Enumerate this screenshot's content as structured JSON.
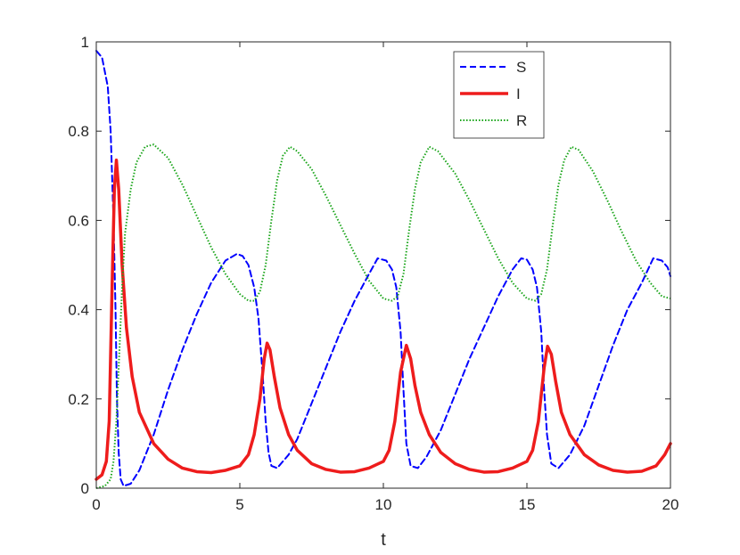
{
  "chart_data": {
    "type": "line",
    "xlabel": "t",
    "ylabel": "",
    "xlim": [
      0,
      20
    ],
    "ylim": [
      0,
      1
    ],
    "xticks": [
      0,
      5,
      10,
      15,
      20
    ],
    "yticks": [
      0,
      0.2,
      0.4,
      0.6,
      0.8,
      1
    ],
    "xtick_labels": [
      "0",
      "5",
      "10",
      "15",
      "20"
    ],
    "ytick_labels": [
      "0",
      "0.2",
      "0.4",
      "0.6",
      "0.8",
      "1"
    ],
    "grid": false,
    "legend_position": "top-right",
    "series": [
      {
        "name": "S",
        "color": "#0000ff",
        "style": "dashed",
        "points": [
          [
            0,
            0.98
          ],
          [
            0.2,
            0.965
          ],
          [
            0.4,
            0.9
          ],
          [
            0.5,
            0.8
          ],
          [
            0.6,
            0.6
          ],
          [
            0.67,
            0.4
          ],
          [
            0.72,
            0.2
          ],
          [
            0.78,
            0.08
          ],
          [
            0.85,
            0.02
          ],
          [
            0.95,
            0.005
          ],
          [
            1.2,
            0.01
          ],
          [
            1.5,
            0.04
          ],
          [
            2,
            0.12
          ],
          [
            2.5,
            0.22
          ],
          [
            3,
            0.31
          ],
          [
            3.5,
            0.39
          ],
          [
            4,
            0.46
          ],
          [
            4.5,
            0.51
          ],
          [
            4.9,
            0.525
          ],
          [
            5.1,
            0.52
          ],
          [
            5.3,
            0.5
          ],
          [
            5.5,
            0.45
          ],
          [
            5.65,
            0.38
          ],
          [
            5.8,
            0.25
          ],
          [
            5.9,
            0.15
          ],
          [
            6.0,
            0.08
          ],
          [
            6.1,
            0.05
          ],
          [
            6.3,
            0.045
          ],
          [
            6.7,
            0.075
          ],
          [
            7,
            0.11
          ],
          [
            7.5,
            0.19
          ],
          [
            8,
            0.27
          ],
          [
            8.5,
            0.35
          ],
          [
            9,
            0.42
          ],
          [
            9.5,
            0.48
          ],
          [
            9.8,
            0.515
          ],
          [
            10.1,
            0.51
          ],
          [
            10.3,
            0.49
          ],
          [
            10.45,
            0.45
          ],
          [
            10.6,
            0.35
          ],
          [
            10.7,
            0.22
          ],
          [
            10.8,
            0.1
          ],
          [
            10.95,
            0.05
          ],
          [
            11.2,
            0.045
          ],
          [
            11.5,
            0.07
          ],
          [
            12,
            0.13
          ],
          [
            12.5,
            0.21
          ],
          [
            13,
            0.29
          ],
          [
            13.5,
            0.36
          ],
          [
            14,
            0.43
          ],
          [
            14.5,
            0.49
          ],
          [
            14.8,
            0.515
          ],
          [
            15.0,
            0.512
          ],
          [
            15.2,
            0.49
          ],
          [
            15.35,
            0.45
          ],
          [
            15.5,
            0.35
          ],
          [
            15.6,
            0.22
          ],
          [
            15.7,
            0.12
          ],
          [
            15.85,
            0.055
          ],
          [
            16.1,
            0.045
          ],
          [
            16.5,
            0.075
          ],
          [
            17,
            0.14
          ],
          [
            17.5,
            0.23
          ],
          [
            18,
            0.32
          ],
          [
            18.5,
            0.4
          ],
          [
            19,
            0.46
          ],
          [
            19.4,
            0.515
          ],
          [
            19.7,
            0.51
          ],
          [
            19.9,
            0.495
          ],
          [
            20,
            0.475
          ]
        ]
      },
      {
        "name": "I",
        "color": "#ee1c1c",
        "style": "solid",
        "points": [
          [
            0,
            0.02
          ],
          [
            0.2,
            0.03
          ],
          [
            0.35,
            0.06
          ],
          [
            0.45,
            0.15
          ],
          [
            0.55,
            0.45
          ],
          [
            0.63,
            0.67
          ],
          [
            0.7,
            0.735
          ],
          [
            0.78,
            0.67
          ],
          [
            0.9,
            0.5
          ],
          [
            1.05,
            0.36
          ],
          [
            1.25,
            0.25
          ],
          [
            1.5,
            0.17
          ],
          [
            2,
            0.1
          ],
          [
            2.5,
            0.065
          ],
          [
            3,
            0.045
          ],
          [
            3.5,
            0.037
          ],
          [
            4,
            0.035
          ],
          [
            4.5,
            0.04
          ],
          [
            5,
            0.05
          ],
          [
            5.3,
            0.075
          ],
          [
            5.5,
            0.12
          ],
          [
            5.7,
            0.2
          ],
          [
            5.85,
            0.29
          ],
          [
            5.95,
            0.325
          ],
          [
            6.05,
            0.31
          ],
          [
            6.2,
            0.25
          ],
          [
            6.4,
            0.18
          ],
          [
            6.7,
            0.12
          ],
          [
            7,
            0.085
          ],
          [
            7.5,
            0.055
          ],
          [
            8,
            0.042
          ],
          [
            8.5,
            0.036
          ],
          [
            9,
            0.037
          ],
          [
            9.5,
            0.045
          ],
          [
            10,
            0.06
          ],
          [
            10.2,
            0.085
          ],
          [
            10.4,
            0.15
          ],
          [
            10.6,
            0.26
          ],
          [
            10.8,
            0.32
          ],
          [
            10.95,
            0.29
          ],
          [
            11.1,
            0.23
          ],
          [
            11.3,
            0.17
          ],
          [
            11.6,
            0.12
          ],
          [
            12,
            0.08
          ],
          [
            12.5,
            0.055
          ],
          [
            13,
            0.042
          ],
          [
            13.5,
            0.036
          ],
          [
            14,
            0.037
          ],
          [
            14.5,
            0.045
          ],
          [
            15,
            0.06
          ],
          [
            15.2,
            0.085
          ],
          [
            15.4,
            0.15
          ],
          [
            15.6,
            0.27
          ],
          [
            15.72,
            0.318
          ],
          [
            15.85,
            0.3
          ],
          [
            16,
            0.24
          ],
          [
            16.2,
            0.17
          ],
          [
            16.5,
            0.12
          ],
          [
            17,
            0.075
          ],
          [
            17.5,
            0.052
          ],
          [
            18,
            0.04
          ],
          [
            18.5,
            0.036
          ],
          [
            19,
            0.038
          ],
          [
            19.5,
            0.05
          ],
          [
            19.8,
            0.075
          ],
          [
            20,
            0.1
          ]
        ]
      },
      {
        "name": "R",
        "color": "#1aa51a",
        "style": "dotted",
        "points": [
          [
            0,
            0
          ],
          [
            0.3,
            0.005
          ],
          [
            0.5,
            0.02
          ],
          [
            0.6,
            0.06
          ],
          [
            0.7,
            0.15
          ],
          [
            0.8,
            0.3
          ],
          [
            0.9,
            0.45
          ],
          [
            1.0,
            0.57
          ],
          [
            1.2,
            0.67
          ],
          [
            1.4,
            0.73
          ],
          [
            1.7,
            0.765
          ],
          [
            2,
            0.77
          ],
          [
            2.5,
            0.74
          ],
          [
            3,
            0.68
          ],
          [
            3.5,
            0.61
          ],
          [
            4,
            0.54
          ],
          [
            4.5,
            0.48
          ],
          [
            5,
            0.435
          ],
          [
            5.3,
            0.42
          ],
          [
            5.5,
            0.42
          ],
          [
            5.7,
            0.44
          ],
          [
            5.9,
            0.5
          ],
          [
            6.1,
            0.6
          ],
          [
            6.3,
            0.69
          ],
          [
            6.5,
            0.745
          ],
          [
            6.75,
            0.765
          ],
          [
            7,
            0.755
          ],
          [
            7.5,
            0.715
          ],
          [
            8,
            0.655
          ],
          [
            8.5,
            0.59
          ],
          [
            9,
            0.525
          ],
          [
            9.5,
            0.465
          ],
          [
            10,
            0.425
          ],
          [
            10.3,
            0.42
          ],
          [
            10.5,
            0.43
          ],
          [
            10.7,
            0.48
          ],
          [
            10.9,
            0.58
          ],
          [
            11.1,
            0.67
          ],
          [
            11.3,
            0.73
          ],
          [
            11.6,
            0.765
          ],
          [
            11.9,
            0.755
          ],
          [
            12.5,
            0.705
          ],
          [
            13,
            0.645
          ],
          [
            13.5,
            0.58
          ],
          [
            14,
            0.515
          ],
          [
            14.5,
            0.46
          ],
          [
            15,
            0.425
          ],
          [
            15.3,
            0.42
          ],
          [
            15.5,
            0.435
          ],
          [
            15.7,
            0.49
          ],
          [
            15.9,
            0.59
          ],
          [
            16.1,
            0.68
          ],
          [
            16.3,
            0.735
          ],
          [
            16.55,
            0.765
          ],
          [
            16.8,
            0.758
          ],
          [
            17.3,
            0.71
          ],
          [
            17.8,
            0.645
          ],
          [
            18.3,
            0.575
          ],
          [
            18.8,
            0.51
          ],
          [
            19.3,
            0.46
          ],
          [
            19.7,
            0.43
          ],
          [
            20,
            0.425
          ]
        ]
      }
    ]
  }
}
